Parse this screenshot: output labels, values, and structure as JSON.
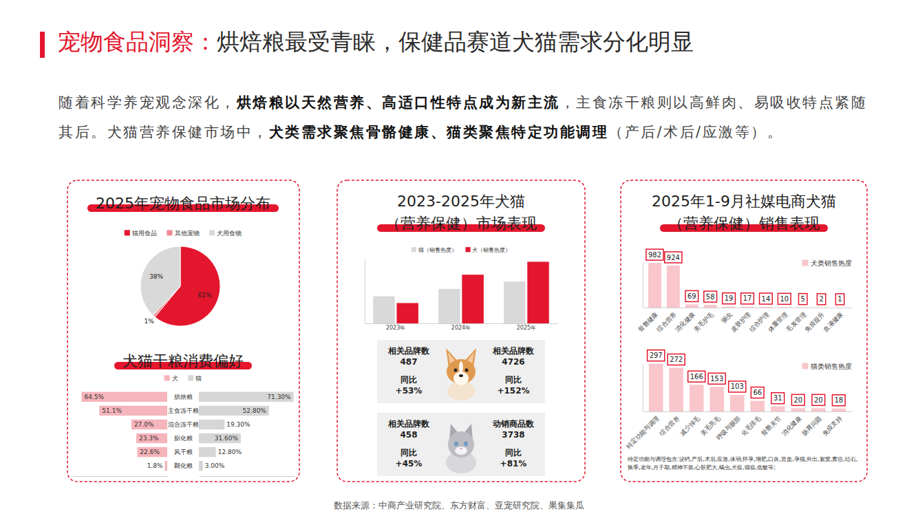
{
  "header": {
    "title_accent": "宠物食品洞察：",
    "title": "烘焙粮最受青睐，保健品赛道犬猫需求分化明显",
    "paragraph": [
      {
        "text": "随着科学养宠观念深化，",
        "bold": false
      },
      {
        "text": "烘焙粮以天然营养、高适口性特点成为新主流",
        "bold": true
      },
      {
        "text": "，主食冻干粮则以高鲜肉、易吸收特点紧随其后。犬猫营养保健市场中，",
        "bold": false
      },
      {
        "text": "犬类需求聚焦骨骼健康、猫类聚焦特定功能调理",
        "bold": true
      },
      {
        "text": "（产后/术后/应激等）。",
        "bold": false
      }
    ]
  },
  "chart_data": [
    {
      "type": "pie",
      "title": "2025年宠物食品市场分布",
      "categories": [
        "猫用食品",
        "其他宠物",
        "犬用食物"
      ],
      "values": [
        61,
        1,
        38
      ],
      "value_labels": [
        "61%",
        "1%",
        "38%"
      ],
      "colors": [
        "#e3162d",
        "#f08c97",
        "#d9d9d9"
      ],
      "legend": "top",
      "data_labels": true
    },
    {
      "type": "butterfly",
      "title": "犬猫干粮消费偏好",
      "orientation": "horizontal",
      "categories": [
        "烘焙粮",
        "主食冻干粮",
        "混合冻干粮",
        "膨化粮",
        "风干粮",
        "颗化粮"
      ],
      "series": [
        {
          "name": "犬",
          "color": "#f6b4bb",
          "values": [
            64.5,
            51.1,
            27.0,
            23.3,
            22.6,
            1.8
          ],
          "value_labels": [
            "64.5%",
            "51.1%",
            "27.0%",
            "23.3%",
            "22.6%",
            "1.8%"
          ]
        },
        {
          "name": "猫",
          "color": "#d6d6d6",
          "values": [
            71.3,
            52.8,
            19.3,
            31.6,
            12.8,
            3.0
          ],
          "value_labels": [
            "71.30%",
            "52.80%",
            "19.30%",
            "31.60%",
            "12.80%",
            "3.00%"
          ]
        }
      ],
      "xlim": [
        0,
        72
      ],
      "legend": "top",
      "data_labels": true,
      "tick_labels": "y"
    },
    {
      "type": "bar",
      "title": "2023-2025年犬猫（营养保健）市场表现",
      "categories": [
        "2023年",
        "2024年",
        "2025年"
      ],
      "series": [
        {
          "name": "猫（销售热度）",
          "color": "#d9d9d9",
          "values": [
            44,
            56,
            68
          ]
        },
        {
          "name": "犬（销售热度）",
          "color": "#e3162d",
          "values": [
            33,
            79,
            100
          ]
        }
      ],
      "ylim": [
        0,
        105
      ],
      "legend": "top",
      "data_labels": false,
      "tick_labels": "x"
    },
    {
      "type": "bar",
      "title": "2025年1-9月社媒电商犬猫（营养保健）销售表现",
      "categories": [
        "骨骼健康",
        "综合营养",
        "消化健康",
        "美毛护毛",
        "驱虫",
        "皮肤护理",
        "综合护理",
        "体重管理",
        "毛发管理",
        "免疫提升",
        "血液健康"
      ],
      "series": [
        {
          "name": "犬类销售热度",
          "color": "#f8c6cb",
          "values": [
            982,
            924,
            69,
            58,
            19,
            17,
            14,
            10,
            5,
            2,
            1
          ]
        }
      ],
      "ylim": [
        0,
        1000
      ],
      "legend": "top-right",
      "data_labels": true,
      "tick_labels": "x"
    },
    {
      "type": "bar",
      "categories": [
        "特定功能与调理",
        "综合营养",
        "减少掉毛",
        "美毛亮毛",
        "呼吸与眼部",
        "化毛排毛",
        "骨骼关节",
        "消化健康",
        "肠胃问题",
        "免疫支持"
      ],
      "series": [
        {
          "name": "猫类销售热度",
          "color": "#f8c6cb",
          "values": [
            297,
            272,
            166,
            153,
            103,
            66,
            31,
            20,
            20,
            18
          ]
        }
      ],
      "ylim": [
        0,
        300
      ],
      "legend": "top-right",
      "data_labels": true,
      "tick_labels": "x",
      "annotation": "特定功能与调理包含:泌钙,产后,术后,应激,体弱,怀孕,增肥,口炎,贫血,孕猫,外出,絮窝,黄疸,结石,换季,老年,月子期,精神不振,心脏肥大,螨虫,犬瘟,猫瘟,低敏等;"
    }
  ],
  "stat_cards": [
    [
      {
        "label": "相关品牌数",
        "value": "487",
        "change_label": "同比",
        "change": "+53%"
      },
      {
        "label": "相关品牌数",
        "value": "4726",
        "change_label": "同比",
        "change": "+152%"
      }
    ],
    [
      {
        "label": "相关品牌数",
        "value": "458",
        "change_label": "同比",
        "change": "+45%"
      },
      {
        "label": "动销商品数",
        "value": "3738",
        "change_label": "同比",
        "change": "+81%"
      }
    ]
  ],
  "footer": {
    "source": "数据来源：中商产业研究院、东方财富、亚宠研究院、果集集瓜"
  }
}
